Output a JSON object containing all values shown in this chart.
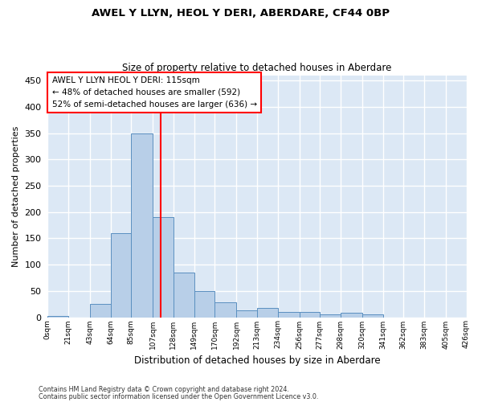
{
  "title1": "AWEL Y LLYN, HEOL Y DERI, ABERDARE, CF44 0BP",
  "title2": "Size of property relative to detached houses in Aberdare",
  "xlabel": "Distribution of detached houses by size in Aberdare",
  "ylabel": "Number of detached properties",
  "footnote1": "Contains HM Land Registry data © Crown copyright and database right 2024.",
  "footnote2": "Contains public sector information licensed under the Open Government Licence v3.0.",
  "annotation_line1": "AWEL Y LLYN HEOL Y DERI: 115sqm",
  "annotation_line2": "← 48% of detached houses are smaller (592)",
  "annotation_line3": "52% of semi-detached houses are larger (636) →",
  "property_size": 115,
  "bar_color": "#b8cfe8",
  "bar_edge_color": "#5a8fc0",
  "vline_color": "red",
  "background_color": "#dce8f5",
  "grid_color": "white",
  "bin_edges": [
    0,
    21,
    43,
    64,
    85,
    107,
    128,
    149,
    170,
    192,
    213,
    234,
    256,
    277,
    298,
    320,
    341,
    362,
    383,
    405,
    426
  ],
  "bin_labels": [
    "0sqm",
    "21sqm",
    "43sqm",
    "64sqm",
    "85sqm",
    "107sqm",
    "128sqm",
    "149sqm",
    "170sqm",
    "192sqm",
    "213sqm",
    "234sqm",
    "256sqm",
    "277sqm",
    "298sqm",
    "320sqm",
    "341sqm",
    "362sqm",
    "383sqm",
    "405sqm",
    "426sqm"
  ],
  "bar_heights": [
    2,
    0,
    25,
    160,
    350,
    190,
    85,
    50,
    28,
    13,
    18,
    10,
    10,
    5,
    8,
    5,
    0,
    0,
    0,
    0
  ],
  "ylim": [
    0,
    460
  ],
  "yticks": [
    0,
    50,
    100,
    150,
    200,
    250,
    300,
    350,
    400,
    450
  ]
}
